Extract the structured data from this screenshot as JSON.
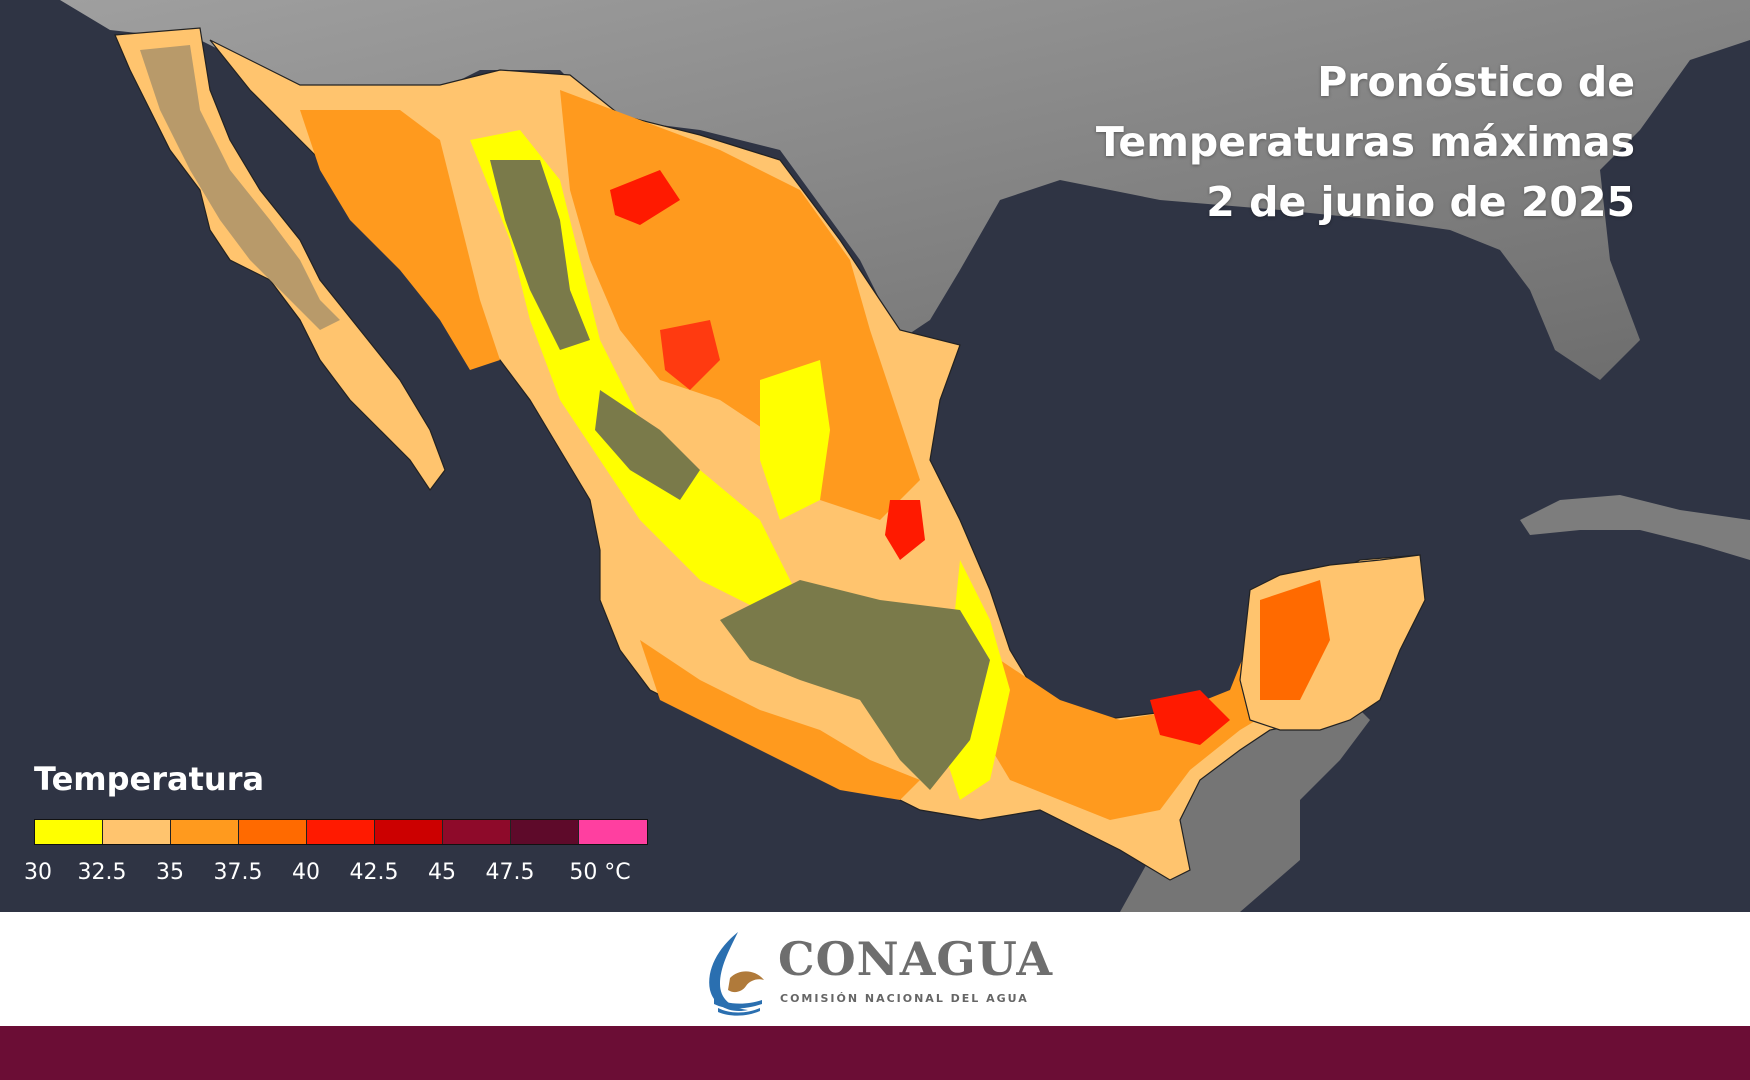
{
  "title": {
    "line1": "Pronóstico de",
    "line2": "Temperaturas máximas",
    "line3": "2 de junio de 2025"
  },
  "legend": {
    "title": "Temperatura",
    "unit": "°C",
    "ticks": [
      "30",
      "32.5",
      "35",
      "37.5",
      "40",
      "42.5",
      "45",
      "47.5",
      "50 °C"
    ],
    "colors": [
      "#ffff00",
      "#ffc46e",
      "#ff9a1e",
      "#ff6a00",
      "#ff1a00",
      "#cc0000",
      "#8e0a2a",
      "#5e0a2a",
      "#ff3fa0"
    ]
  },
  "brand": {
    "name": "CONAGUA",
    "subtitle": "COMISIÓN NACIONAL DEL AGUA",
    "accent": "#6b0d35"
  },
  "map": {
    "ocean": "#2f3444",
    "land_outside": "#8a8a8a",
    "cool_zone": "#7a7a4a"
  }
}
